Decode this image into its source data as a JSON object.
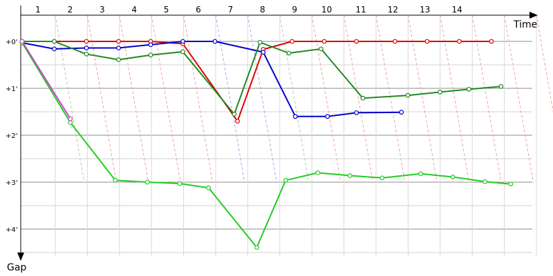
{
  "chart_data": {
    "type": "line",
    "title": "",
    "xlabel": "Time",
    "ylabel": "Gap",
    "laps": [
      "1",
      "2",
      "3",
      "4",
      "5",
      "6",
      "7",
      "8",
      "9",
      "10",
      "11",
      "12",
      "13",
      "14"
    ],
    "y_ticks": [
      "+0'",
      "+1'",
      "+2'",
      "+3'",
      "+4'"
    ],
    "ylim": [
      0,
      4.45
    ],
    "grid": true,
    "series": [
      {
        "color": "#e00000",
        "points": [
          [
            0.0,
            0.0
          ],
          [
            1.0,
            0.0
          ],
          [
            2.0,
            0.0
          ],
          [
            3.0,
            0.0
          ],
          [
            4.0,
            0.0
          ],
          [
            5.0,
            0.05
          ],
          [
            6.7,
            1.7
          ],
          [
            7.5,
            0.17
          ],
          [
            8.4,
            0.0
          ],
          [
            9.4,
            0.0
          ],
          [
            10.4,
            0.0
          ],
          [
            11.6,
            0.0
          ],
          [
            12.6,
            0.0
          ],
          [
            13.6,
            0.0
          ],
          [
            14.6,
            0.0
          ]
        ]
      },
      {
        "color": "#0000cc",
        "points": [
          [
            0.0,
            0.03
          ],
          [
            1.0,
            0.16
          ],
          [
            2.0,
            0.14
          ],
          [
            3.0,
            0.14
          ],
          [
            4.0,
            0.07
          ],
          [
            5.0,
            0.0
          ],
          [
            6.0,
            0.0
          ],
          [
            7.5,
            0.23
          ],
          [
            8.5,
            1.6
          ],
          [
            9.5,
            1.6
          ],
          [
            10.4,
            1.52
          ],
          [
            11.8,
            1.51
          ]
        ]
      },
      {
        "color": "#228822",
        "points": [
          [
            0.0,
            0.0
          ],
          [
            1.0,
            0.0
          ],
          [
            2.0,
            0.27
          ],
          [
            3.0,
            0.39
          ],
          [
            4.0,
            0.29
          ],
          [
            5.0,
            0.22
          ],
          [
            6.6,
            1.55
          ],
          [
            7.4,
            0.02
          ],
          [
            8.3,
            0.25
          ],
          [
            9.3,
            0.16
          ],
          [
            10.6,
            1.21
          ],
          [
            12.0,
            1.15
          ],
          [
            13.0,
            1.08
          ],
          [
            13.9,
            1.02
          ],
          [
            14.9,
            0.96
          ]
        ]
      },
      {
        "color": "#22cc22",
        "points": [
          [
            0.0,
            0.03
          ],
          [
            1.5,
            1.73
          ],
          [
            2.9,
            2.96
          ],
          [
            3.9,
            3.0
          ],
          [
            4.9,
            3.03
          ],
          [
            5.8,
            3.12
          ],
          [
            7.3,
            4.39
          ],
          [
            8.2,
            2.96
          ],
          [
            9.2,
            2.8
          ],
          [
            10.2,
            2.86
          ],
          [
            11.2,
            2.91
          ],
          [
            12.4,
            2.82
          ],
          [
            13.4,
            2.89
          ],
          [
            14.4,
            2.99
          ],
          [
            15.2,
            3.04
          ]
        ]
      },
      {
        "color": "#cc44cc",
        "points": [
          [
            0.0,
            0.0
          ],
          [
            1.5,
            1.65
          ]
        ]
      }
    ],
    "lap_marker_colors": [
      "#a8d0a8",
      "#f0a0a0",
      "#f0a0a0",
      "#f0a0a0",
      "#f0a0a0",
      "#a8a8f0",
      "#a8a8f0",
      "#a8d0a8",
      "#f0a0a0",
      "#f0a0a0",
      "#f0a0a0",
      "#f0a0a0",
      "#f0a0a0",
      "#f0a0a0",
      "#f0a0a0",
      "#f0a0a0"
    ]
  }
}
